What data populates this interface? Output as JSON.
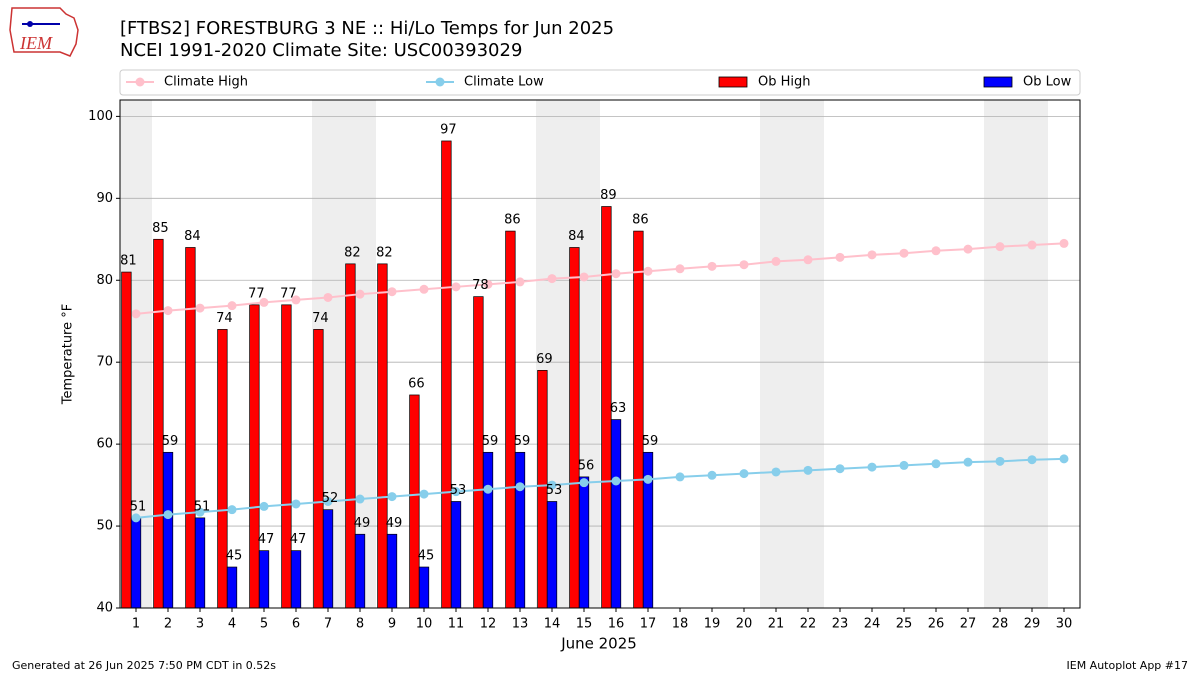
{
  "chart_data": {
    "type": "bar",
    "title": "[FTBS2] FORESTBURG 3 NE :: Hi/Lo Temps for Jun 2025",
    "subtitle": "NCEI 1991-2020 Climate Site: USC00393029",
    "logo_text": "IEM",
    "xlabel": "June 2025",
    "ylabel": "Temperature °F",
    "footer_left": "Generated at 26 Jun 2025 7:50 PM CDT in 0.52s",
    "footer_right": "IEM Autoplot App #17",
    "x": [
      1,
      2,
      3,
      4,
      5,
      6,
      7,
      8,
      9,
      10,
      11,
      12,
      13,
      14,
      15,
      16,
      17,
      18,
      19,
      20,
      21,
      22,
      23,
      24,
      25,
      26,
      27,
      28,
      29,
      30
    ],
    "xlim": [
      0.5,
      30.5
    ],
    "xticks": [
      1,
      2,
      3,
      4,
      5,
      6,
      7,
      8,
      9,
      10,
      11,
      12,
      13,
      14,
      15,
      16,
      17,
      18,
      19,
      20,
      21,
      22,
      23,
      24,
      25,
      26,
      27,
      28,
      29,
      30
    ],
    "ylim": [
      40,
      102
    ],
    "yticks": [
      40,
      50,
      60,
      70,
      80,
      90,
      100
    ],
    "grid": true,
    "legend": "top",
    "shaded_days": [
      1,
      7,
      8,
      14,
      15,
      21,
      22,
      28,
      29
    ],
    "shade_color": "#eeeeee",
    "series": [
      {
        "name": "Climate High",
        "type": "line",
        "color": "#ffc0cb",
        "values": [
          75.9,
          76.3,
          76.6,
          76.9,
          77.3,
          77.6,
          77.9,
          78.3,
          78.6,
          78.9,
          79.2,
          79.5,
          79.8,
          80.2,
          80.4,
          80.8,
          81.1,
          81.4,
          81.7,
          81.9,
          82.3,
          82.5,
          82.8,
          83.1,
          83.3,
          83.6,
          83.8,
          84.1,
          84.3,
          84.5
        ]
      },
      {
        "name": "Climate Low",
        "type": "line",
        "color": "#87ceeb",
        "values": [
          51.0,
          51.4,
          51.7,
          52.0,
          52.4,
          52.7,
          53.0,
          53.3,
          53.6,
          53.9,
          54.2,
          54.5,
          54.8,
          55.0,
          55.3,
          55.5,
          55.7,
          56.0,
          56.2,
          56.4,
          56.6,
          56.8,
          57.0,
          57.2,
          57.4,
          57.6,
          57.8,
          57.9,
          58.1,
          58.2
        ]
      },
      {
        "name": "Ob High",
        "type": "bar",
        "color": "#ff0000",
        "values": [
          81,
          85,
          84,
          74,
          77,
          77,
          74,
          82,
          82,
          66,
          97,
          78,
          86,
          69,
          84,
          89,
          86,
          null,
          null,
          null,
          null,
          null,
          null,
          null,
          null,
          null,
          null,
          null,
          null,
          null
        ]
      },
      {
        "name": "Ob Low",
        "type": "bar",
        "color": "#0000ff",
        "values": [
          51,
          59,
          51,
          45,
          47,
          47,
          52,
          49,
          49,
          45,
          53,
          59,
          59,
          53,
          56,
          63,
          59,
          null,
          null,
          null,
          null,
          null,
          null,
          null,
          null,
          null,
          null,
          null,
          null,
          null
        ]
      }
    ]
  }
}
